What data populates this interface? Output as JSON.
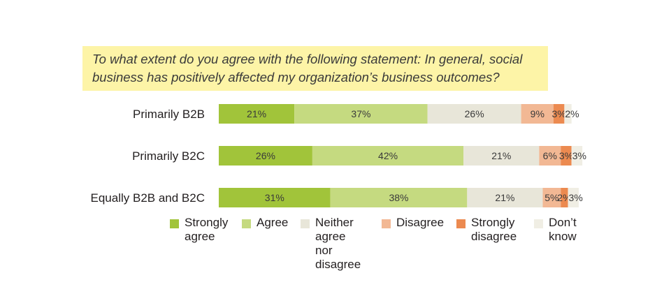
{
  "question": "To what extent do you agree with the following statement:  In general, social business has positively affected my organization’s business outcomes?",
  "chart_data": {
    "type": "bar",
    "orientation": "horizontal",
    "stacked": true,
    "categories": [
      "Primarily B2B",
      "Primarily B2C",
      "Equally B2B and B2C"
    ],
    "series": [
      {
        "name": "Strongly\nagree",
        "color": "#a1c43a",
        "values": [
          21,
          26,
          31
        ]
      },
      {
        "name": "Agree",
        "color": "#c5da80",
        "values": [
          37,
          42,
          38
        ]
      },
      {
        "name": "Neither\nagree nor\ndisagree",
        "color": "#e8e6d9",
        "values": [
          26,
          21,
          21
        ]
      },
      {
        "name": "Disagree",
        "color": "#f2b894",
        "values": [
          9,
          6,
          5
        ]
      },
      {
        "name": "Strongly\ndisagree",
        "color": "#ec8a50",
        "values": [
          3,
          3,
          2
        ]
      },
      {
        "name": "Don’t\nknow",
        "color": "#f0eee4",
        "values": [
          2,
          3,
          3
        ]
      }
    ],
    "value_suffix": "%",
    "xlim": [
      0,
      100
    ],
    "grid": false,
    "legend_position": "bottom"
  }
}
